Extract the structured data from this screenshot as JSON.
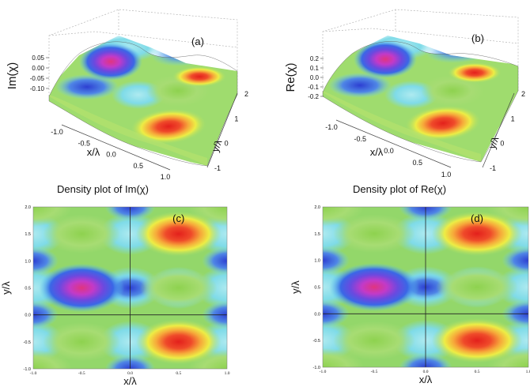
{
  "figure": {
    "panels": [
      "(a)",
      "(b)",
      "(c)",
      "(d)"
    ]
  },
  "chart_data": [
    {
      "id": "a",
      "type": "surface3d",
      "panel_label": "(a)",
      "title": "",
      "zlabel": "Im(χ)",
      "xlabel": "x/λ",
      "ylabel": "y/λ",
      "z_ticks": [
        "0.05",
        "0.00",
        "-0.05",
        "-0.10"
      ],
      "z_range": [
        -0.12,
        0.07
      ],
      "x_ticks": [
        "-1.0",
        "-0.5",
        "0.0",
        "0.5",
        "1.0"
      ],
      "x_range": [
        -1.0,
        1.0
      ],
      "y_ticks": [
        "-1",
        "0",
        "1",
        "2"
      ],
      "y_range": [
        -1,
        2
      ],
      "peaks": [
        {
          "x": -0.5,
          "y": 0.5,
          "value": 0.05
        },
        {
          "x": 0.5,
          "y": 1.5,
          "value": -0.1
        },
        {
          "x": 0.5,
          "y": -0.5,
          "value": -0.1
        }
      ]
    },
    {
      "id": "b",
      "type": "surface3d",
      "panel_label": "(b)",
      "title": "",
      "zlabel": "Re(χ)",
      "xlabel": "x/λ",
      "ylabel": "y/λ",
      "z_ticks": [
        "0.2",
        "0.1",
        "0.0",
        "-0.1",
        "-0.2"
      ],
      "z_range": [
        -0.2,
        0.2
      ],
      "x_ticks": [
        "-1.0",
        "-0.5",
        "0.0",
        "0.5",
        "1.0"
      ],
      "x_range": [
        -1.0,
        1.0
      ],
      "y_ticks": [
        "-1",
        "0",
        "1",
        "2"
      ],
      "y_range": [
        -1,
        2
      ],
      "peaks": [
        {
          "x": -0.5,
          "y": 0.5,
          "value": 0.2
        },
        {
          "x": 0.5,
          "y": 1.5,
          "value": -0.2
        },
        {
          "x": 0.5,
          "y": -0.5,
          "value": -0.2
        }
      ]
    },
    {
      "id": "c",
      "type": "heatmap",
      "panel_label": "(c)",
      "title": "Density plot of Im(χ)",
      "xlabel": "x/λ",
      "ylabel": "y/λ",
      "x_ticks": [
        "-1.0",
        "-0.5",
        "0.0",
        "0.5",
        "1.0"
      ],
      "x_range": [
        -1.0,
        1.0
      ],
      "y_ticks": [
        "2.0",
        "1.5",
        "1.0",
        "0.5",
        "0.0",
        "-0.5",
        "-1.0"
      ],
      "y_range": [
        -1.0,
        2.0
      ],
      "colormap": [
        "#2e3fd6",
        "#55c9ef",
        "#a9e6a0",
        "#7ccf4a",
        "#e6e640",
        "#f5b03a",
        "#e8332a"
      ],
      "hot_spots": [
        {
          "x": 0.5,
          "y": 1.5
        },
        {
          "x": 0.5,
          "y": -0.5
        }
      ],
      "cold_spots": [
        {
          "x": -0.5,
          "y": 0.5,
          "color": "#d9359a"
        }
      ]
    },
    {
      "id": "d",
      "type": "heatmap",
      "panel_label": "(d)",
      "title": "Density plot of Re(χ)",
      "xlabel": "x/λ",
      "ylabel": "y/λ",
      "x_ticks": [
        "-1.0",
        "-0.5",
        "0.0",
        "0.5",
        "1.0"
      ],
      "x_range": [
        -1.0,
        1.0
      ],
      "y_ticks": [
        "2.0",
        "1.5",
        "1.0",
        "0.5",
        "0.0",
        "-0.5",
        "-1.0"
      ],
      "y_range": [
        -1.0,
        2.0
      ],
      "colormap": [
        "#2e3fd6",
        "#55c9ef",
        "#a9e6a0",
        "#7ccf4a",
        "#e6e640",
        "#f5b03a",
        "#e8332a"
      ],
      "hot_spots": [
        {
          "x": 0.5,
          "y": 1.5
        },
        {
          "x": 0.5,
          "y": -0.5
        }
      ],
      "cold_spots": [
        {
          "x": -0.5,
          "y": 0.5,
          "color": "#d9359a"
        }
      ]
    }
  ]
}
